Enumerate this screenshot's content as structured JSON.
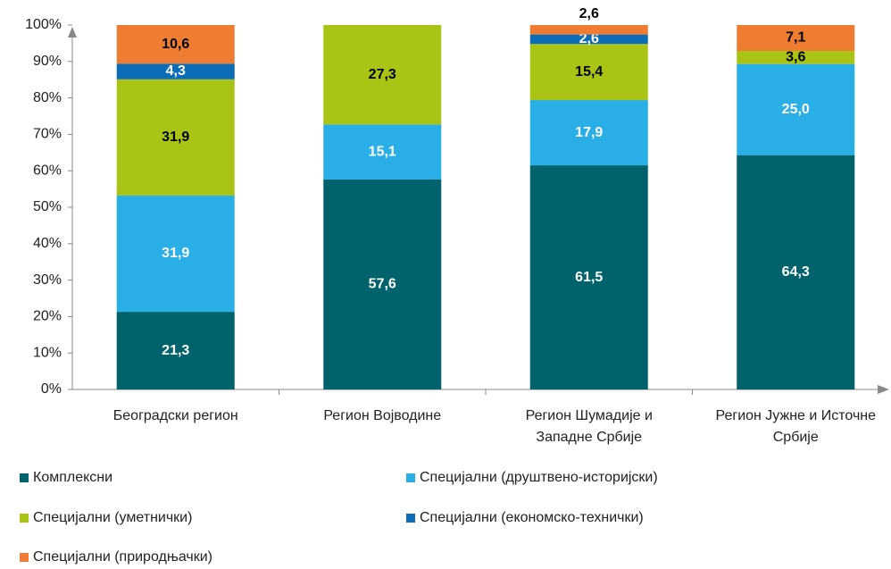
{
  "chart_data": {
    "type": "stacked_bar",
    "categories": [
      "Београдски регион",
      "Регион Војводине",
      "Регион Шумадије и Западне Србије",
      "Регион Јужне и Источне Србије"
    ],
    "series": [
      {
        "name": "Комплексни",
        "color": "#00626b",
        "label_color": "#ffffff",
        "values": [
          21.3,
          57.6,
          61.5,
          64.3
        ],
        "value_labels": [
          "21,3",
          "57,6",
          "61,5",
          "64,3"
        ]
      },
      {
        "name": "Специјални (друштвено-историјски)",
        "color": "#29afe6",
        "label_color": "#ffffff",
        "values": [
          31.9,
          15.1,
          17.9,
          25.0
        ],
        "value_labels": [
          "31,9",
          "15,1",
          "17,9",
          "25,0"
        ]
      },
      {
        "name": "Специјални (уметнички)",
        "color": "#a9c414",
        "label_color": "#000000",
        "values": [
          31.9,
          27.3,
          15.4,
          3.6
        ],
        "value_labels": [
          "31,9",
          "27,3",
          "15,4",
          "3,6"
        ]
      },
      {
        "name": "Специјални (економско-технички)",
        "color": "#0c6cb5",
        "label_color": "#ffffff",
        "values": [
          4.3,
          null,
          2.6,
          null
        ],
        "value_labels": [
          "4,3",
          null,
          "2,6",
          null
        ]
      },
      {
        "name": "Специјални (природњачки)",
        "color": "#ee7d31",
        "label_color": "#000000",
        "values": [
          10.6,
          null,
          2.6,
          7.1
        ],
        "value_labels": [
          "10,6",
          null,
          "2,6",
          "7,1"
        ]
      }
    ],
    "ylim": [
      0,
      100
    ],
    "yticks": [
      {
        "value": 0,
        "label": "0%"
      },
      {
        "value": 10,
        "label": "10%"
      },
      {
        "value": 20,
        "label": "20%"
      },
      {
        "value": 30,
        "label": "30%"
      },
      {
        "value": 40,
        "label": "40%"
      },
      {
        "value": 50,
        "label": "50%"
      },
      {
        "value": 60,
        "label": "60%"
      },
      {
        "value": 70,
        "label": "70%"
      },
      {
        "value": 80,
        "label": "80%"
      },
      {
        "value": 90,
        "label": "90%"
      },
      {
        "value": 100,
        "label": "100%"
      }
    ]
  }
}
